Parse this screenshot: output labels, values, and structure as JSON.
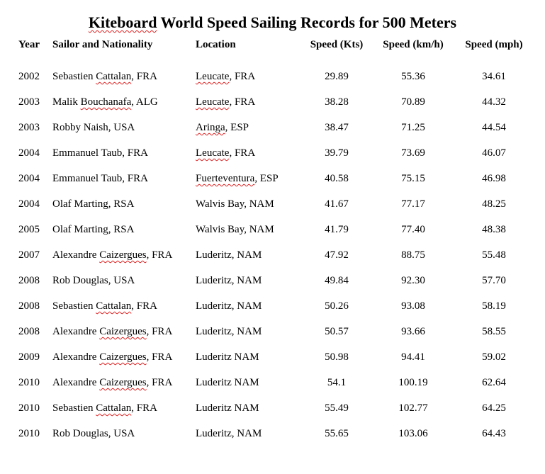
{
  "document": {
    "title_part1": "Kiteboard",
    "title_part2": " World Speed Sailing Records for 500 Meters",
    "headers": {
      "year": "Year",
      "sailor": "Sailor and Nationality",
      "location": "Location",
      "kts": "Speed (Kts)",
      "kmh": "Speed (km/h)",
      "mph": "Speed (mph)"
    },
    "rows": [
      {
        "year": "2002",
        "sailor_first": "Sebastien ",
        "sailor_last": "Cattalan",
        "sailor_rest": ", FRA",
        "loc_main": "Leucate",
        "loc_rest": ", FRA",
        "kts": "29.89",
        "kmh": "55.36",
        "mph": "34.61"
      },
      {
        "year": "2003",
        "sailor_first": "Malik ",
        "sailor_last": "Bouchanafa",
        "sailor_rest": ", ALG",
        "loc_main": "Leucate",
        "loc_rest": ", FRA",
        "kts": "38.28",
        "kmh": "70.89",
        "mph": "44.32"
      },
      {
        "year": "2003",
        "sailor_first": "Robby Naish",
        "sailor_last": "",
        "sailor_rest": ", USA",
        "loc_main": "Aringa",
        "loc_rest": ", ESP",
        "kts": "38.47",
        "kmh": "71.25",
        "mph": "44.54"
      },
      {
        "year": "2004",
        "sailor_first": "Emmanuel Taub",
        "sailor_last": "",
        "sailor_rest": ", FRA",
        "loc_main": "Leucate",
        "loc_rest": ", FRA",
        "kts": "39.79",
        "kmh": "73.69",
        "mph": "46.07"
      },
      {
        "year": "2004",
        "sailor_first": "Emmanuel Taub",
        "sailor_last": "",
        "sailor_rest": ", FRA",
        "loc_main": "Fuerteventura",
        "loc_rest": ", ESP",
        "kts": "40.58",
        "kmh": "75.15",
        "mph": "46.98"
      },
      {
        "year": "2004",
        "sailor_first": "Olaf Marting",
        "sailor_last": "",
        "sailor_rest": ", RSA",
        "loc_main": "",
        "loc_rest": "Walvis Bay, NAM",
        "kts": "41.67",
        "kmh": "77.17",
        "mph": "48.25"
      },
      {
        "year": "2005",
        "sailor_first": "Olaf Marting",
        "sailor_last": "",
        "sailor_rest": ", RSA",
        "loc_main": "",
        "loc_rest": "Walvis Bay, NAM",
        "kts": "41.79",
        "kmh": "77.40",
        "mph": "48.38"
      },
      {
        "year": "2007",
        "sailor_first": "Alexandre ",
        "sailor_last": "Caizergues",
        "sailor_rest": ", FRA",
        "loc_main": "",
        "loc_rest": "Luderitz, NAM",
        "kts": "47.92",
        "kmh": "88.75",
        "mph": "55.48"
      },
      {
        "year": "2008",
        "sailor_first": "Rob Douglas",
        "sailor_last": "",
        "sailor_rest": ", USA",
        "loc_main": "",
        "loc_rest": "Luderitz, NAM",
        "kts": "49.84",
        "kmh": "92.30",
        "mph": "57.70"
      },
      {
        "year": "2008",
        "sailor_first": "Sebastien ",
        "sailor_last": "Cattalan",
        "sailor_rest": ", FRA",
        "loc_main": "",
        "loc_rest": "Luderitz, NAM",
        "kts": "50.26",
        "kmh": "93.08",
        "mph": "58.19"
      },
      {
        "year": "2008",
        "sailor_first": "Alexandre ",
        "sailor_last": "Caizergues",
        "sailor_rest": ", FRA",
        "loc_main": "",
        "loc_rest": "Luderitz, NAM",
        "kts": "50.57",
        "kmh": "93.66",
        "mph": "58.55"
      },
      {
        "year": "2009",
        "sailor_first": "Alexandre ",
        "sailor_last": "Caizergues",
        "sailor_rest": ", FRA",
        "loc_main": "",
        "loc_rest": "Luderitz NAM",
        "kts": "50.98",
        "kmh": "94.41",
        "mph": "59.02"
      },
      {
        "year": "2010",
        "sailor_first": "Alexandre ",
        "sailor_last": "Caizergues",
        "sailor_rest": ", FRA",
        "loc_main": "",
        "loc_rest": "Luderitz NAM",
        "kts": "54.1",
        "kmh": "100.19",
        "mph": "62.64"
      },
      {
        "year": "2010",
        "sailor_first": "Sebastien ",
        "sailor_last": "Cattalan",
        "sailor_rest": ", FRA",
        "loc_main": "",
        "loc_rest": "Luderitz NAM",
        "kts": "55.49",
        "kmh": "102.77",
        "mph": "64.25"
      },
      {
        "year": "2010",
        "sailor_first": "Rob Douglas",
        "sailor_last": "",
        "sailor_rest": ", USA",
        "loc_main": "",
        "loc_rest": "Luderitz, NAM",
        "kts": "55.65",
        "kmh": "103.06",
        "mph": "64.43"
      }
    ]
  }
}
